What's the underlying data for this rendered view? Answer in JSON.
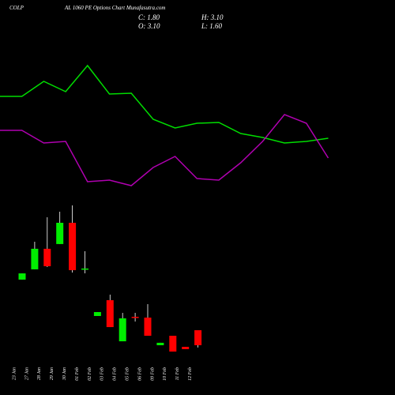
{
  "chart_data": [
    {
      "type": "candlestick",
      "title": "COLP",
      "subtitle": "AL 1060 PE Options Chart Munafasutra.com",
      "annotations": [
        "C: 1.80",
        "H: 3.10",
        "O: 3.10",
        "L: 1.60"
      ],
      "categories": [
        "23 Jan",
        "27 Jan",
        "28 Jan",
        "29 Jan",
        "30 Jan",
        "01 Feb",
        "02 Feb",
        "03 Feb",
        "04 Feb",
        "05 Feb",
        "06 Feb",
        "09 Feb",
        "10 Feb",
        "11 Feb",
        "12 Feb"
      ],
      "open": [
        7.48,
        8.37,
        10.15,
        10.56,
        12.4,
        8.44,
        4.33,
        5.7,
        2.14,
        4.26,
        4.19,
        1.8,
        2.62,
        1.66,
        3.1
      ],
      "high": [
        8.02,
        10.76,
        12.88,
        13.36,
        13.91,
        9.94,
        4.67,
        6.18,
        4.6,
        4.6,
        5.36,
        2.01,
        2.62,
        1.66,
        3.1
      ],
      "low": [
        7.48,
        8.37,
        8.57,
        10.56,
        8.09,
        8.02,
        4.33,
        3.37,
        2.14,
        3.85,
        2.62,
        1.8,
        1.25,
        1.46,
        1.6
      ],
      "close": [
        8.02,
        10.15,
        8.64,
        12.4,
        8.3,
        8.44,
        4.67,
        3.37,
        4.13,
        4.19,
        2.62,
        2.01,
        1.25,
        1.46,
        1.8
      ],
      "up_color": "#00ee00",
      "down_color": "#ff0000",
      "ylim": [
        -2.51,
        14.59
      ]
    },
    {
      "type": "line",
      "series": [
        {
          "color": "#00dd00",
          "values": [
            64,
            64,
            73.5,
            67,
            83.5,
            65.5,
            66,
            49.5,
            44,
            47,
            47.5,
            40.5,
            38,
            34.5,
            35.5,
            37.5
          ]
        },
        {
          "color": "#b000b0",
          "values": [
            42.5,
            42.5,
            34.5,
            35.5,
            10,
            11,
            7.5,
            19,
            26,
            12,
            11,
            22,
            35.5,
            52.5,
            47,
            25
          ]
        }
      ],
      "ylim": [
        0,
        100
      ]
    }
  ]
}
